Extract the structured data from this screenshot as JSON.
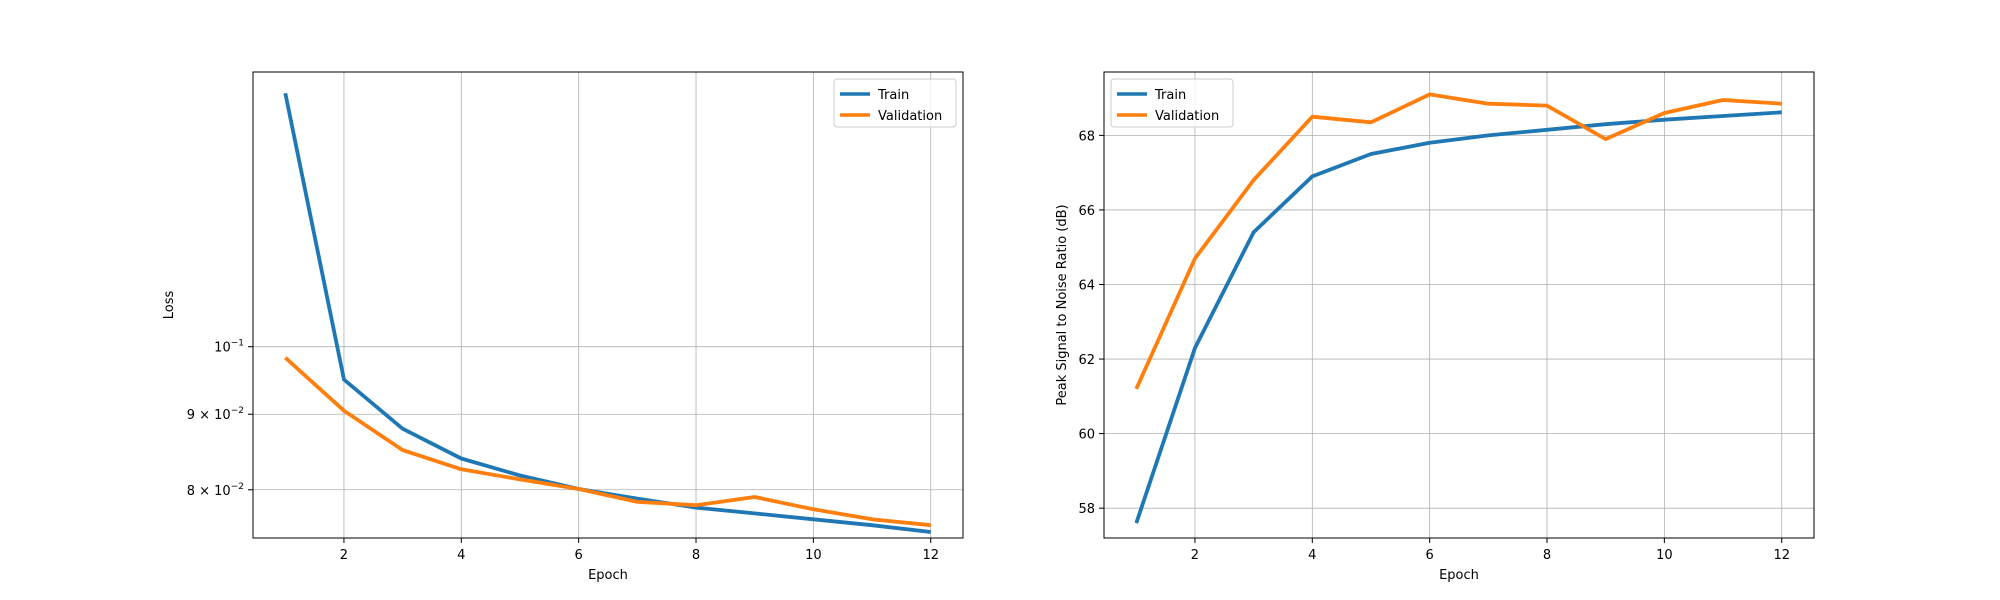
{
  "colors": {
    "train": "#1f77b4",
    "validation": "#ff7f0e",
    "grid": "#b0b0b0",
    "axes": "#000000"
  },
  "chart_data": [
    {
      "type": "line",
      "title": "",
      "xlabel": "Epoch",
      "ylabel": "Loss",
      "yscale": "log",
      "grid": true,
      "legend_position": "top-right",
      "xlim": [
        0.45,
        12.55
      ],
      "ylim": [
        0.0742,
        0.1535
      ],
      "xticks": [
        2,
        4,
        6,
        8,
        10,
        12
      ],
      "xtick_labels": [
        "2",
        "4",
        "6",
        "8",
        "10",
        "12"
      ],
      "yticks": [
        0.08,
        0.09,
        0.1
      ],
      "ytick_labels": [
        "8 × 10⁻²",
        "9 × 10⁻²",
        "10⁻¹"
      ],
      "ytick_mantissa": [
        "8 × 10",
        "9 × 10",
        "10"
      ],
      "ytick_exponent": [
        "−2",
        "−2",
        "−1"
      ],
      "x": [
        1,
        2,
        3,
        4,
        5,
        6,
        7,
        8,
        9,
        10,
        11,
        12
      ],
      "series": [
        {
          "name": "Train",
          "color": "#1f77b4",
          "values": [
            0.1485,
            0.095,
            0.088,
            0.084,
            0.0818,
            0.0801,
            0.0789,
            0.0778,
            0.0771,
            0.0764,
            0.0757,
            0.0749
          ]
        },
        {
          "name": "Validation",
          "color": "#ff7f0e",
          "values": [
            0.0983,
            0.0905,
            0.0851,
            0.0826,
            0.0813,
            0.0801,
            0.0785,
            0.0781,
            0.0791,
            0.0776,
            0.0764,
            0.0757
          ]
        }
      ]
    },
    {
      "type": "line",
      "title": "",
      "xlabel": "Epoch",
      "ylabel": "Peak Signal to Noise Ratio (dB)",
      "yscale": "linear",
      "grid": true,
      "legend_position": "top-left",
      "xlim": [
        0.45,
        12.55
      ],
      "ylim": [
        57.2,
        69.7
      ],
      "xticks": [
        2,
        4,
        6,
        8,
        10,
        12
      ],
      "xtick_labels": [
        "2",
        "4",
        "6",
        "8",
        "10",
        "12"
      ],
      "yticks": [
        58,
        60,
        62,
        64,
        66,
        68
      ],
      "ytick_labels": [
        "58",
        "60",
        "62",
        "64",
        "66",
        "68"
      ],
      "x": [
        1,
        2,
        3,
        4,
        5,
        6,
        7,
        8,
        9,
        10,
        11,
        12
      ],
      "series": [
        {
          "name": "Train",
          "color": "#1f77b4",
          "values": [
            57.6,
            62.3,
            65.4,
            66.9,
            67.5,
            67.8,
            68.0,
            68.15,
            68.3,
            68.42,
            68.52,
            68.62
          ]
        },
        {
          "name": "Validation",
          "color": "#ff7f0e",
          "values": [
            61.2,
            64.7,
            66.8,
            68.5,
            68.35,
            69.1,
            68.85,
            68.8,
            67.9,
            68.6,
            68.95,
            68.85
          ]
        }
      ]
    }
  ]
}
